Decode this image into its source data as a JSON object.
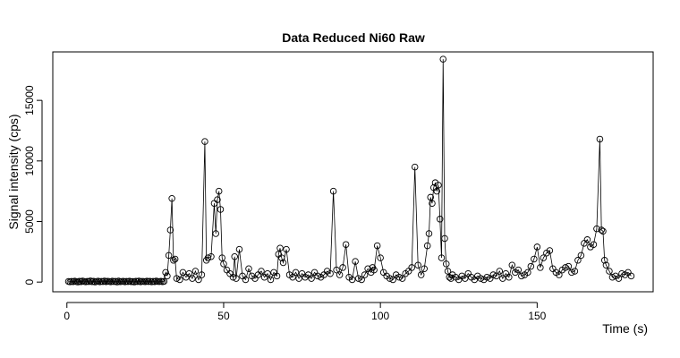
{
  "chart_data": {
    "type": "scatter",
    "title": "Data Reduced Ni60 Raw",
    "xlabel": "Time (s)",
    "ylabel": "Signal intensity (cps)",
    "xlim": [
      -4.5,
      187
    ],
    "ylim": [
      -800,
      19000
    ],
    "x_ticks": [
      0,
      50,
      100,
      150
    ],
    "x_tick_labels": [
      "0",
      "50",
      "100",
      "150"
    ],
    "y_ticks": [
      0,
      5000,
      10000,
      15000
    ],
    "y_tick_labels": [
      "0",
      "5000",
      "10000",
      "15000"
    ],
    "grid": false,
    "legend": "none",
    "marker": "open-circle",
    "connected": true,
    "series": [
      {
        "x": [
          0.5,
          1.0,
          1.5,
          2.0,
          2.5,
          3.0,
          3.5,
          4.0,
          4.5,
          5.0,
          5.5,
          6.0,
          6.5,
          7.0,
          7.5,
          8.0,
          8.5,
          9.0,
          9.5,
          10.0,
          10.5,
          11.0,
          11.5,
          12.0,
          12.5,
          13.0,
          13.5,
          14.0,
          14.5,
          15.0,
          15.5,
          16.0,
          16.5,
          17.0,
          17.5,
          18.0,
          18.5,
          19.0,
          19.5,
          20.0,
          20.5,
          21.0,
          21.5,
          22.0,
          22.5,
          23.0,
          23.5,
          24.0,
          24.5,
          25.0,
          25.5,
          26.0,
          26.5,
          27.0,
          27.5,
          28.0,
          28.5,
          29.0,
          29.5,
          30.0,
          30.5,
          31.0,
          31.5,
          32.0,
          32.5,
          33.0,
          33.5,
          34.0,
          34.5,
          35.0,
          36.0,
          37.0,
          38.0,
          39.0,
          40.0,
          41.0,
          42.0,
          43.0,
          44.0,
          44.5,
          45.0,
          46.0,
          47.0,
          47.5,
          48.0,
          48.5,
          49.0,
          49.5,
          50.0,
          51.0,
          52.0,
          53.0,
          53.5,
          54.0,
          55.0,
          56.0,
          57.0,
          58.0,
          59.0,
          60.0,
          61.0,
          62.0,
          63.0,
          64.0,
          65.0,
          66.0,
          67.0,
          67.5,
          68.0,
          68.5,
          69.0,
          70.0,
          71.0,
          72.0,
          73.0,
          74.0,
          75.0,
          76.0,
          77.0,
          78.0,
          79.0,
          80.0,
          81.0,
          82.0,
          83.0,
          84.0,
          85.0,
          86.0,
          87.0,
          88.0,
          89.0,
          90.0,
          91.0,
          92.0,
          93.0,
          94.0,
          95.0,
          96.0,
          97.0,
          97.5,
          98.0,
          99.0,
          100.0,
          101.0,
          102.0,
          103.0,
          104.0,
          105.0,
          106.0,
          107.0,
          108.0,
          109.0,
          110.0,
          111.0,
          112.0,
          113.0,
          114.0,
          115.0,
          115.5,
          116.0,
          116.5,
          117.0,
          117.5,
          118.0,
          118.5,
          119.0,
          119.5,
          120.0,
          120.5,
          121.0,
          121.5,
          122.0,
          122.5,
          123.0,
          124.0,
          125.0,
          126.0,
          127.0,
          128.0,
          129.0,
          130.0,
          131.0,
          132.0,
          133.0,
          134.0,
          135.0,
          136.0,
          137.0,
          138.0,
          139.0,
          140.0,
          141.0,
          142.0,
          143.0,
          144.0,
          145.0,
          146.0,
          147.0,
          148.0,
          149.0,
          150.0,
          151.0,
          152.0,
          153.0,
          154.0,
          155.0,
          156.0,
          157.0,
          158.0,
          159.0,
          160.0,
          161.0,
          162.0,
          163.0,
          164.0,
          165.0,
          166.0,
          167.0,
          168.0,
          169.0,
          170.0,
          170.5,
          171.0,
          171.5,
          172.0,
          173.0,
          174.0,
          175.0,
          176.0,
          177.0,
          178.0,
          179.0,
          180.0
        ],
        "y": [
          50,
          20,
          60,
          30,
          80,
          40,
          10,
          70,
          30,
          90,
          50,
          20,
          60,
          40,
          100,
          30,
          70,
          10,
          50,
          80,
          20,
          60,
          40,
          90,
          30,
          70,
          50,
          20,
          80,
          40,
          60,
          10,
          90,
          30,
          50,
          70,
          20,
          60,
          40,
          80,
          30,
          50,
          10,
          70,
          40,
          90,
          20,
          60,
          50,
          30,
          80,
          40,
          70,
          20,
          60,
          30,
          90,
          50,
          40,
          70,
          30,
          60,
          800,
          500,
          2200,
          4300,
          6900,
          1800,
          1900,
          300,
          200,
          800,
          400,
          700,
          300,
          900,
          200,
          600,
          11600,
          1800,
          2000,
          2100,
          6500,
          4000,
          6800,
          7500,
          6000,
          2000,
          1500,
          1000,
          700,
          400,
          2100,
          300,
          2700,
          500,
          200,
          1100,
          500,
          300,
          600,
          900,
          400,
          700,
          200,
          800,
          500,
          2300,
          2800,
          2000,
          1600,
          2700,
          600,
          400,
          800,
          300,
          700,
          400,
          600,
          300,
          800,
          500,
          400,
          600,
          900,
          700,
          7500,
          1000,
          600,
          1200,
          3100,
          400,
          200,
          1700,
          300,
          200,
          600,
          1100,
          800,
          1200,
          1000,
          3000,
          2000,
          800,
          500,
          300,
          200,
          600,
          400,
          300,
          700,
          900,
          1200,
          9500,
          1400,
          600,
          1100,
          3000,
          4000,
          7000,
          6500,
          7800,
          8200,
          7500,
          8000,
          5200,
          2000,
          18400,
          3600,
          1500,
          900,
          400,
          300,
          600,
          400,
          200,
          500,
          300,
          700,
          400,
          200,
          500,
          300,
          200,
          400,
          300,
          600,
          500,
          900,
          300,
          700,
          400,
          1400,
          800,
          1000,
          500,
          600,
          800,
          1300,
          1900,
          2900,
          1200,
          2000,
          2400,
          2600,
          1100,
          800,
          600,
          1000,
          1200,
          1300,
          800,
          900,
          1800,
          2200,
          3200,
          3500,
          2900,
          3100,
          4400,
          11800,
          4300,
          4200,
          1800,
          1400,
          900,
          400,
          500,
          300,
          700,
          600,
          800,
          500
        ]
      }
    ]
  }
}
